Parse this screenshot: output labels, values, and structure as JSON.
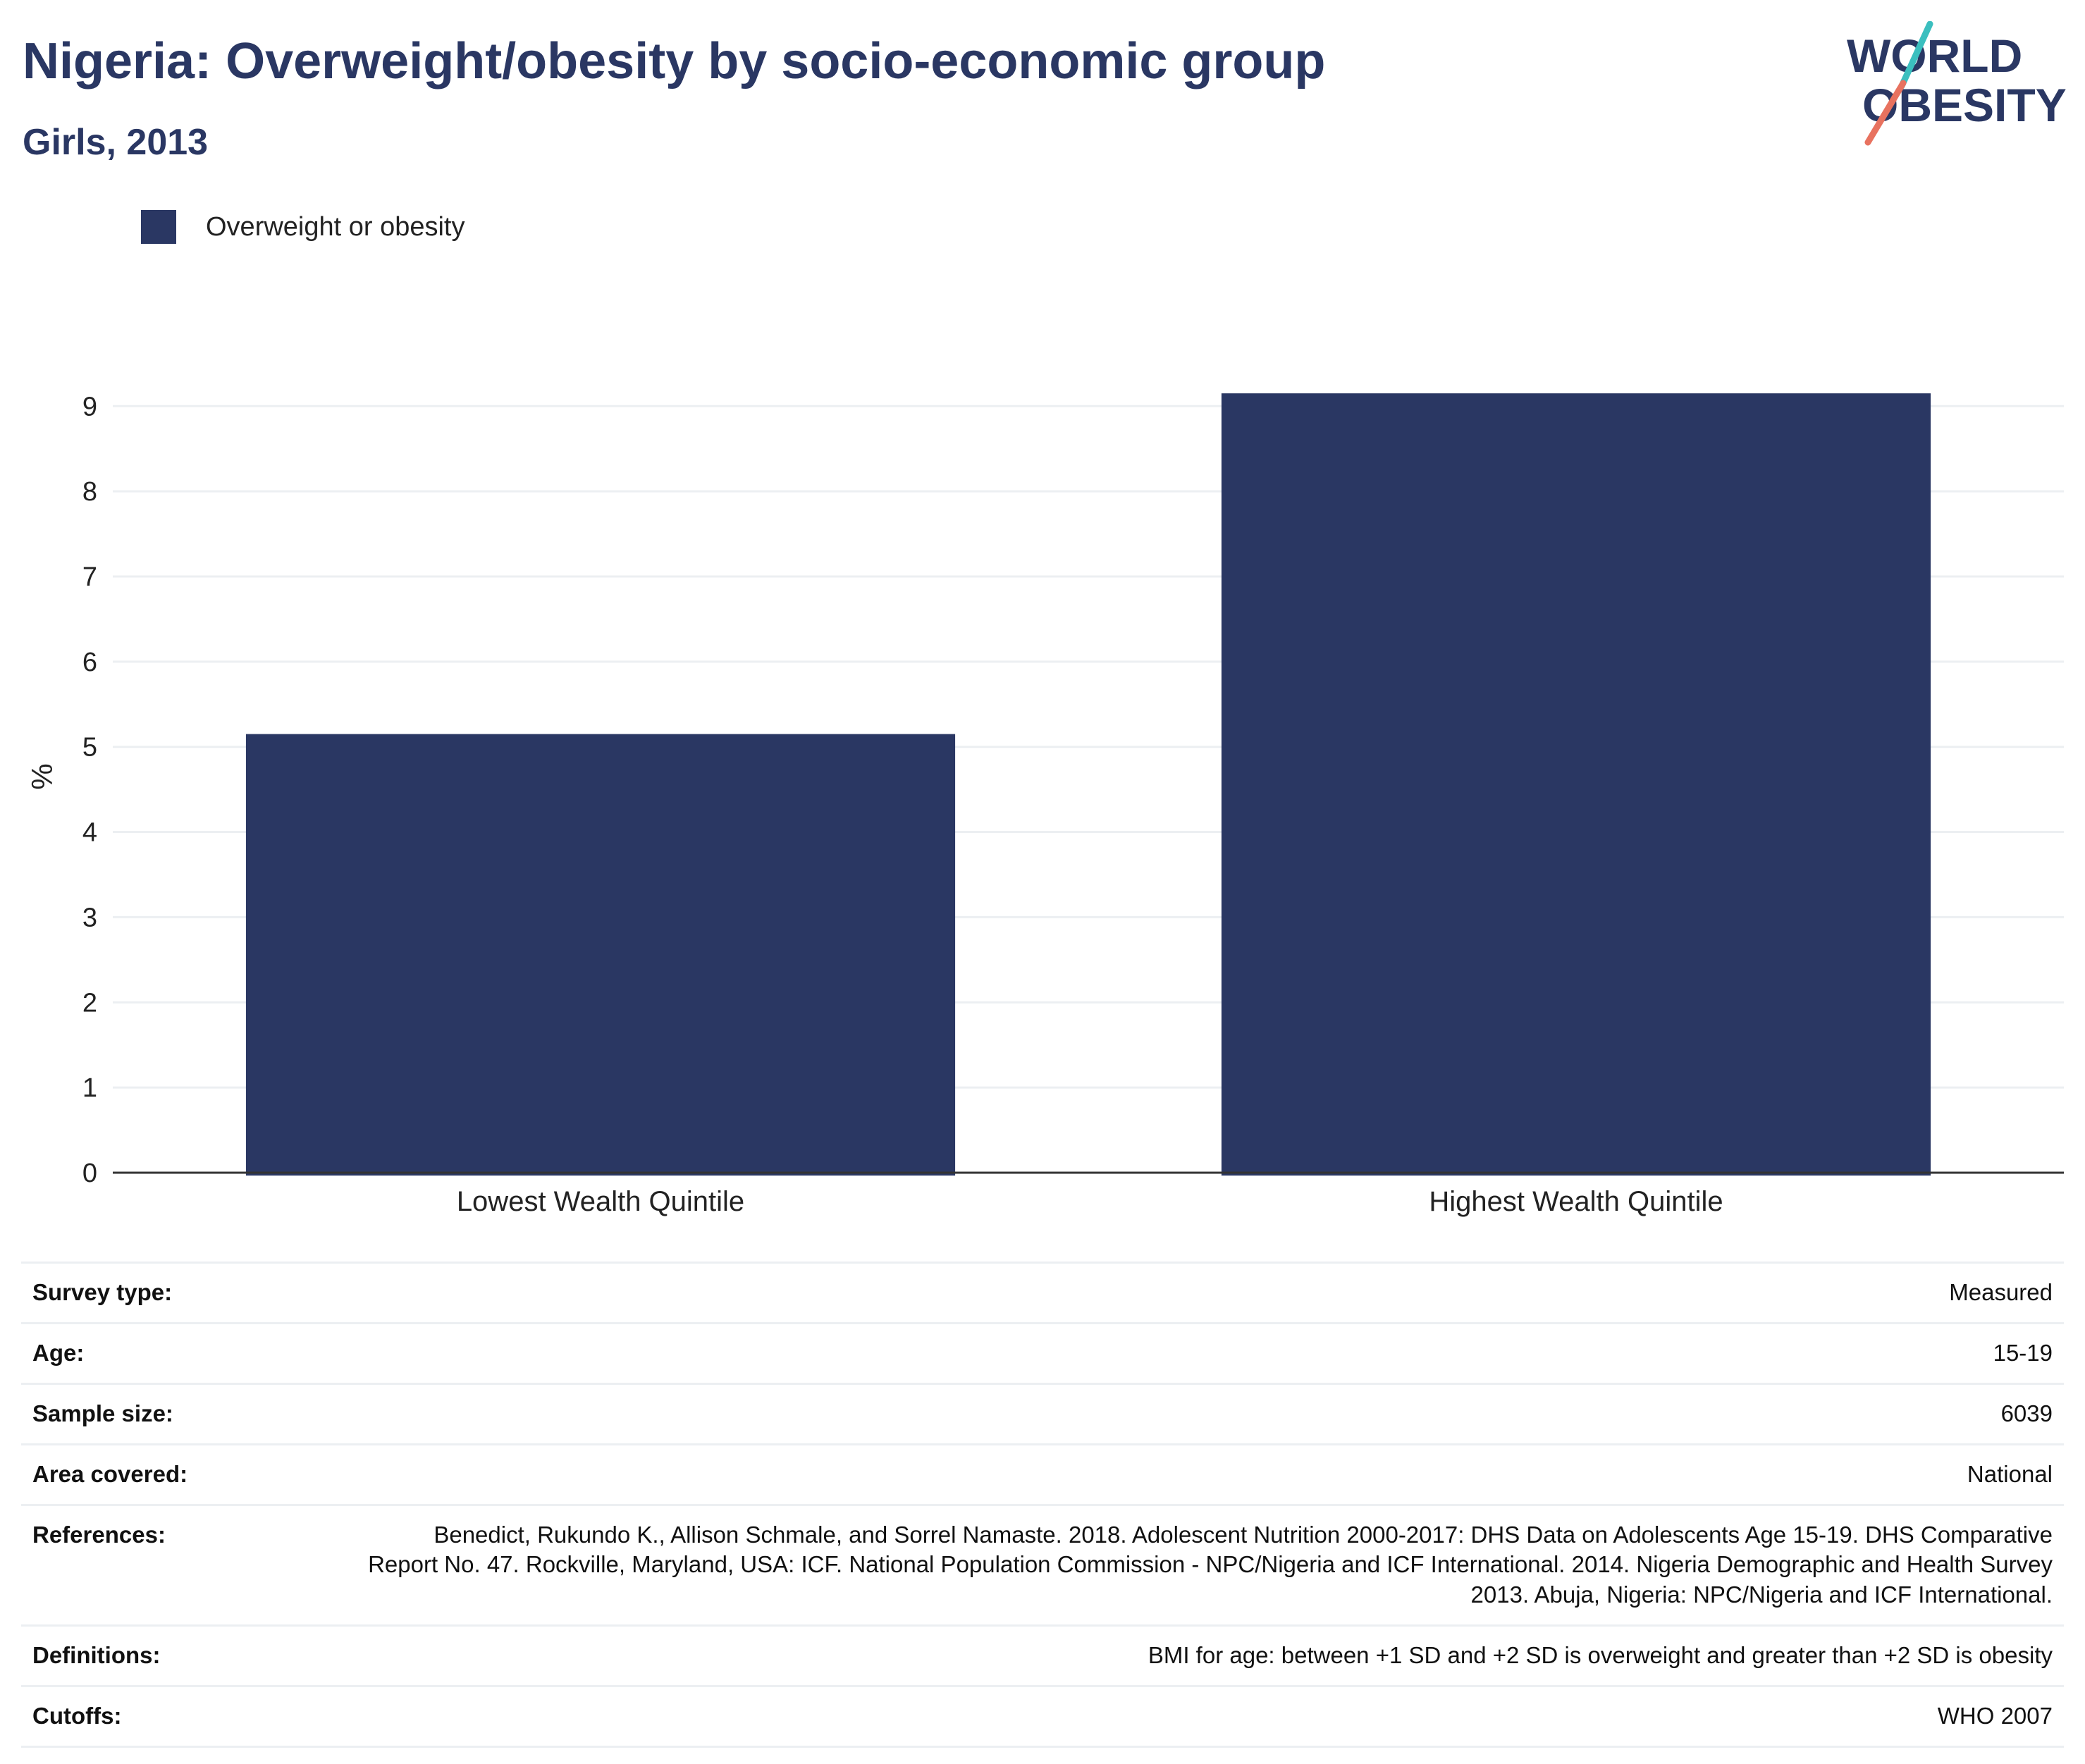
{
  "header": {
    "title": "Nigeria: Overweight/obesity by socio-economic group",
    "subtitle": "Girls, 2013"
  },
  "logo": {
    "line1": "WORLD",
    "line2": "OBESITY",
    "icon": "world-obesity-logo",
    "accent_teal": "#3bbfbf",
    "accent_coral": "#e8725f"
  },
  "colors": {
    "bar": "#2a3763",
    "grid": "#eceff2",
    "axis": "#333333"
  },
  "chart_data": {
    "type": "bar",
    "categories": [
      "Lowest Wealth Quintile",
      "Highest Wealth Quintile"
    ],
    "series": [
      {
        "name": "Overweight or obesity",
        "values": [
          5.15,
          9.15
        ]
      }
    ],
    "ylabel": "%",
    "xlabel": "",
    "ylim": [
      0,
      9.3
    ],
    "yticks": [
      0,
      1,
      2,
      3,
      4,
      5,
      6,
      7,
      8,
      9
    ],
    "grid": true,
    "legend_placement": "top-left"
  },
  "meta": {
    "rows": [
      {
        "key": "Survey type:",
        "value": "Measured"
      },
      {
        "key": "Age:",
        "value": "15-19"
      },
      {
        "key": "Sample size:",
        "value": "6039"
      },
      {
        "key": "Area covered:",
        "value": "National"
      },
      {
        "key": "References:",
        "value": "Benedict, Rukundo K., Allison Schmale, and Sorrel Namaste. 2018. Adolescent Nutrition 2000-2017: DHS Data on Adolescents Age 15-19. DHS Comparative Report No. 47. Rockville, Maryland, USA: ICF. National Population Commission - NPC/Nigeria and ICF International. 2014. Nigeria Demographic and Health Survey 2013. Abuja, Nigeria: NPC/Nigeria and ICF International."
      },
      {
        "key": "Definitions:",
        "value": "BMI for age: between +1 SD and +2 SD is overweight and greater than +2 SD is obesity"
      },
      {
        "key": "Cutoffs:",
        "value": "WHO 2007"
      }
    ]
  }
}
